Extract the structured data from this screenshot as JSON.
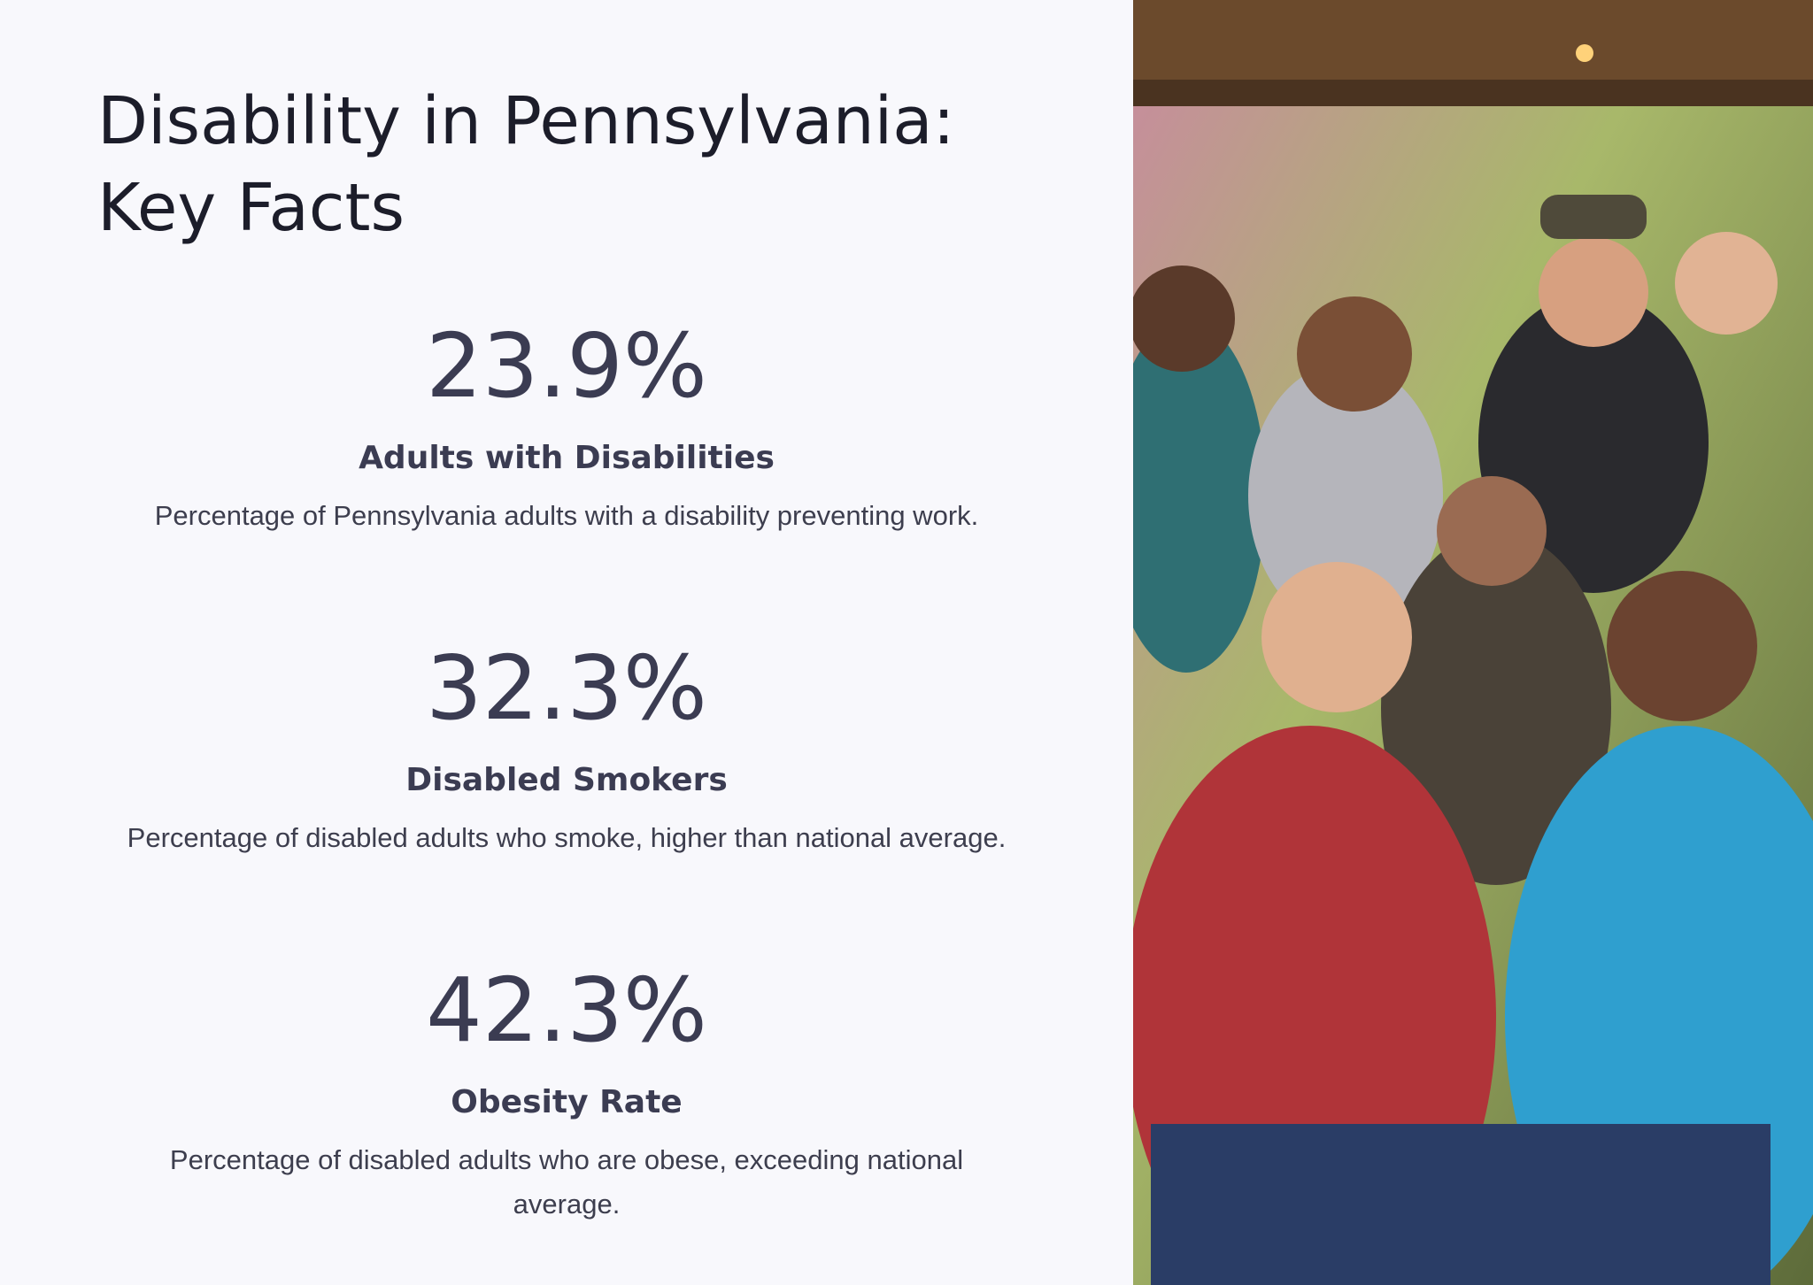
{
  "header": {
    "title_line1": "Disability in Pennsylvania:",
    "title_line2": "Key Facts"
  },
  "stats": [
    {
      "value": "23.9%",
      "label": "Adults with Disabilities",
      "description": "Percentage of Pennsylvania adults with a disability preventing work."
    },
    {
      "value": "32.3%",
      "label": "Disabled Smokers",
      "description": "Percentage of disabled adults who smoke, higher than national average."
    },
    {
      "value": "42.3%",
      "label": "Obesity Rate",
      "description": "Percentage of disabled adults who are obese, exceeding national average."
    }
  ]
}
